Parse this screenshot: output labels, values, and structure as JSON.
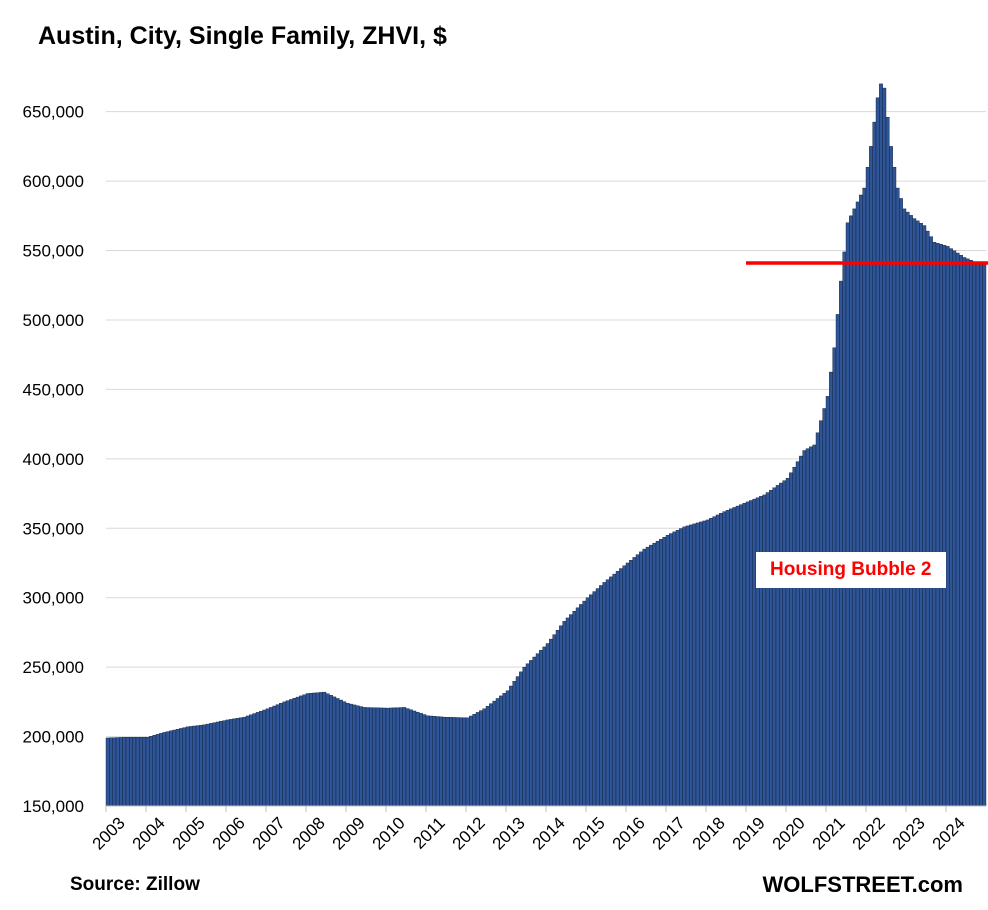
{
  "chart_data": {
    "type": "bar",
    "title": "Austin, City, Single Family, ZHVI, $",
    "xlabel": "",
    "ylabel": "",
    "ylim": [
      150000,
      680000
    ],
    "yticks": [
      150000,
      200000,
      250000,
      300000,
      350000,
      400000,
      450000,
      500000,
      550000,
      600000,
      650000
    ],
    "ytick_labels": [
      "150,000",
      "200,000",
      "250,000",
      "300,000",
      "350,000",
      "400,000",
      "450,000",
      "500,000",
      "550,000",
      "600,000",
      "650,000"
    ],
    "x_tick_labels": [
      "2003",
      "2004",
      "2005",
      "2006",
      "2007",
      "2008",
      "2009",
      "2010",
      "2011",
      "2012",
      "2013",
      "2014",
      "2015",
      "2016",
      "2017",
      "2018",
      "2019",
      "2020",
      "2021",
      "2022",
      "2023",
      "2024"
    ],
    "grid": "horizontal",
    "bar_color": "#2f5597",
    "bar_edge_color": "#0d1a33",
    "series": [
      {
        "frequency": "monthly",
        "start": "2003-01",
        "end": "2024-12",
        "anchors": [
          [
            "2003-01",
            199000
          ],
          [
            "2003-06",
            199500
          ],
          [
            "2004-01",
            199500
          ],
          [
            "2004-06",
            203000
          ],
          [
            "2005-01",
            207000
          ],
          [
            "2005-06",
            208500
          ],
          [
            "2006-01",
            212000
          ],
          [
            "2006-06",
            214000
          ],
          [
            "2007-01",
            220000
          ],
          [
            "2007-06",
            225000
          ],
          [
            "2008-01",
            231000
          ],
          [
            "2008-06",
            232000
          ],
          [
            "2009-01",
            224000
          ],
          [
            "2009-06",
            221000
          ],
          [
            "2010-01",
            220500
          ],
          [
            "2010-06",
            221000
          ],
          [
            "2011-01",
            215000
          ],
          [
            "2011-06",
            214000
          ],
          [
            "2012-01",
            213500
          ],
          [
            "2012-06",
            220000
          ],
          [
            "2013-01",
            233000
          ],
          [
            "2013-06",
            250000
          ],
          [
            "2014-01",
            267000
          ],
          [
            "2014-06",
            283000
          ],
          [
            "2015-01",
            300000
          ],
          [
            "2015-06",
            311000
          ],
          [
            "2016-01",
            325000
          ],
          [
            "2016-06",
            335000
          ],
          [
            "2017-01",
            345000
          ],
          [
            "2017-06",
            351000
          ],
          [
            "2018-01",
            356000
          ],
          [
            "2018-06",
            362000
          ],
          [
            "2019-01",
            369000
          ],
          [
            "2019-06",
            374000
          ],
          [
            "2020-01",
            386000
          ],
          [
            "2020-06",
            406000
          ],
          [
            "2020-09",
            410000
          ],
          [
            "2021-01",
            445000
          ],
          [
            "2021-03",
            480000
          ],
          [
            "2021-05",
            528000
          ],
          [
            "2021-07",
            570000
          ],
          [
            "2021-09",
            580000
          ],
          [
            "2021-12",
            595000
          ],
          [
            "2022-02",
            625000
          ],
          [
            "2022-04",
            660000
          ],
          [
            "2022-05",
            670000
          ],
          [
            "2022-06",
            667000
          ],
          [
            "2022-08",
            625000
          ],
          [
            "2022-10",
            595000
          ],
          [
            "2022-12",
            580000
          ],
          [
            "2023-03",
            573000
          ],
          [
            "2023-06",
            568000
          ],
          [
            "2023-09",
            556000
          ],
          [
            "2024-01",
            553000
          ],
          [
            "2024-06",
            545000
          ],
          [
            "2024-09",
            542000
          ],
          [
            "2024-12",
            540000
          ]
        ]
      }
    ],
    "reference_line": {
      "value": 541000,
      "from": "2019-01",
      "color": "#ff0000"
    },
    "annotations": [
      {
        "text": "Housing Bubble 2",
        "color": "#ff0000"
      }
    ],
    "source": "Source: Zillow",
    "brand": "WOLFSTREET.com"
  }
}
